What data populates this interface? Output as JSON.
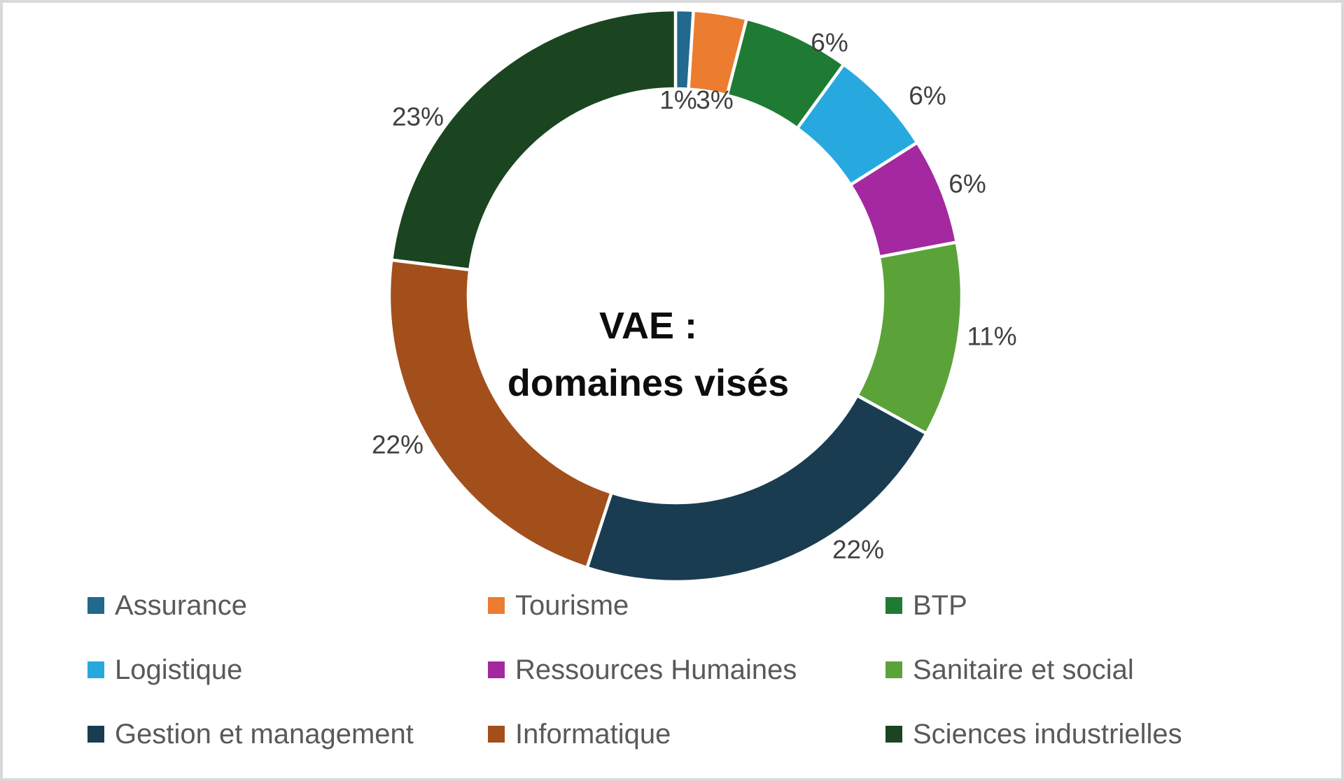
{
  "chart_data": {
    "type": "pie",
    "subtype": "donut",
    "title_lines": [
      "VAE :",
      "domaines visés"
    ],
    "units": "percent",
    "direction": "clockwise",
    "start_angle_deg": 0,
    "legend_position": "bottom",
    "grid": false,
    "slices": [
      {
        "name": "Assurance",
        "value": 1,
        "label": "1%",
        "color": "#21698D"
      },
      {
        "name": "Tourisme",
        "value": 3,
        "label": "3%",
        "color": "#EC7C30"
      },
      {
        "name": "BTP",
        "value": 6,
        "label": "6%",
        "color": "#1F7B34"
      },
      {
        "name": "Logistique",
        "value": 6,
        "label": "6%",
        "color": "#27A9E0"
      },
      {
        "name": "Ressources Humaines",
        "value": 6,
        "label": "6%",
        "color": "#A428A0"
      },
      {
        "name": "Sanitaire et social",
        "value": 11,
        "label": "11%",
        "color": "#5BA339"
      },
      {
        "name": "Gestion et management",
        "value": 22,
        "label": "22%",
        "color": "#1A3C51"
      },
      {
        "name": "Informatique",
        "value": 22,
        "label": "22%",
        "color": "#A34F1B"
      },
      {
        "name": "Sciences industrielles",
        "value": 23,
        "label": "23%",
        "color": "#1A4520"
      }
    ]
  },
  "colors": {
    "page_border": "#D9D9D9",
    "percent_label_text": "#404040",
    "legend_text": "#595959",
    "title_text": "#0D0D0D",
    "slice_separator": "#FFFFFF"
  }
}
